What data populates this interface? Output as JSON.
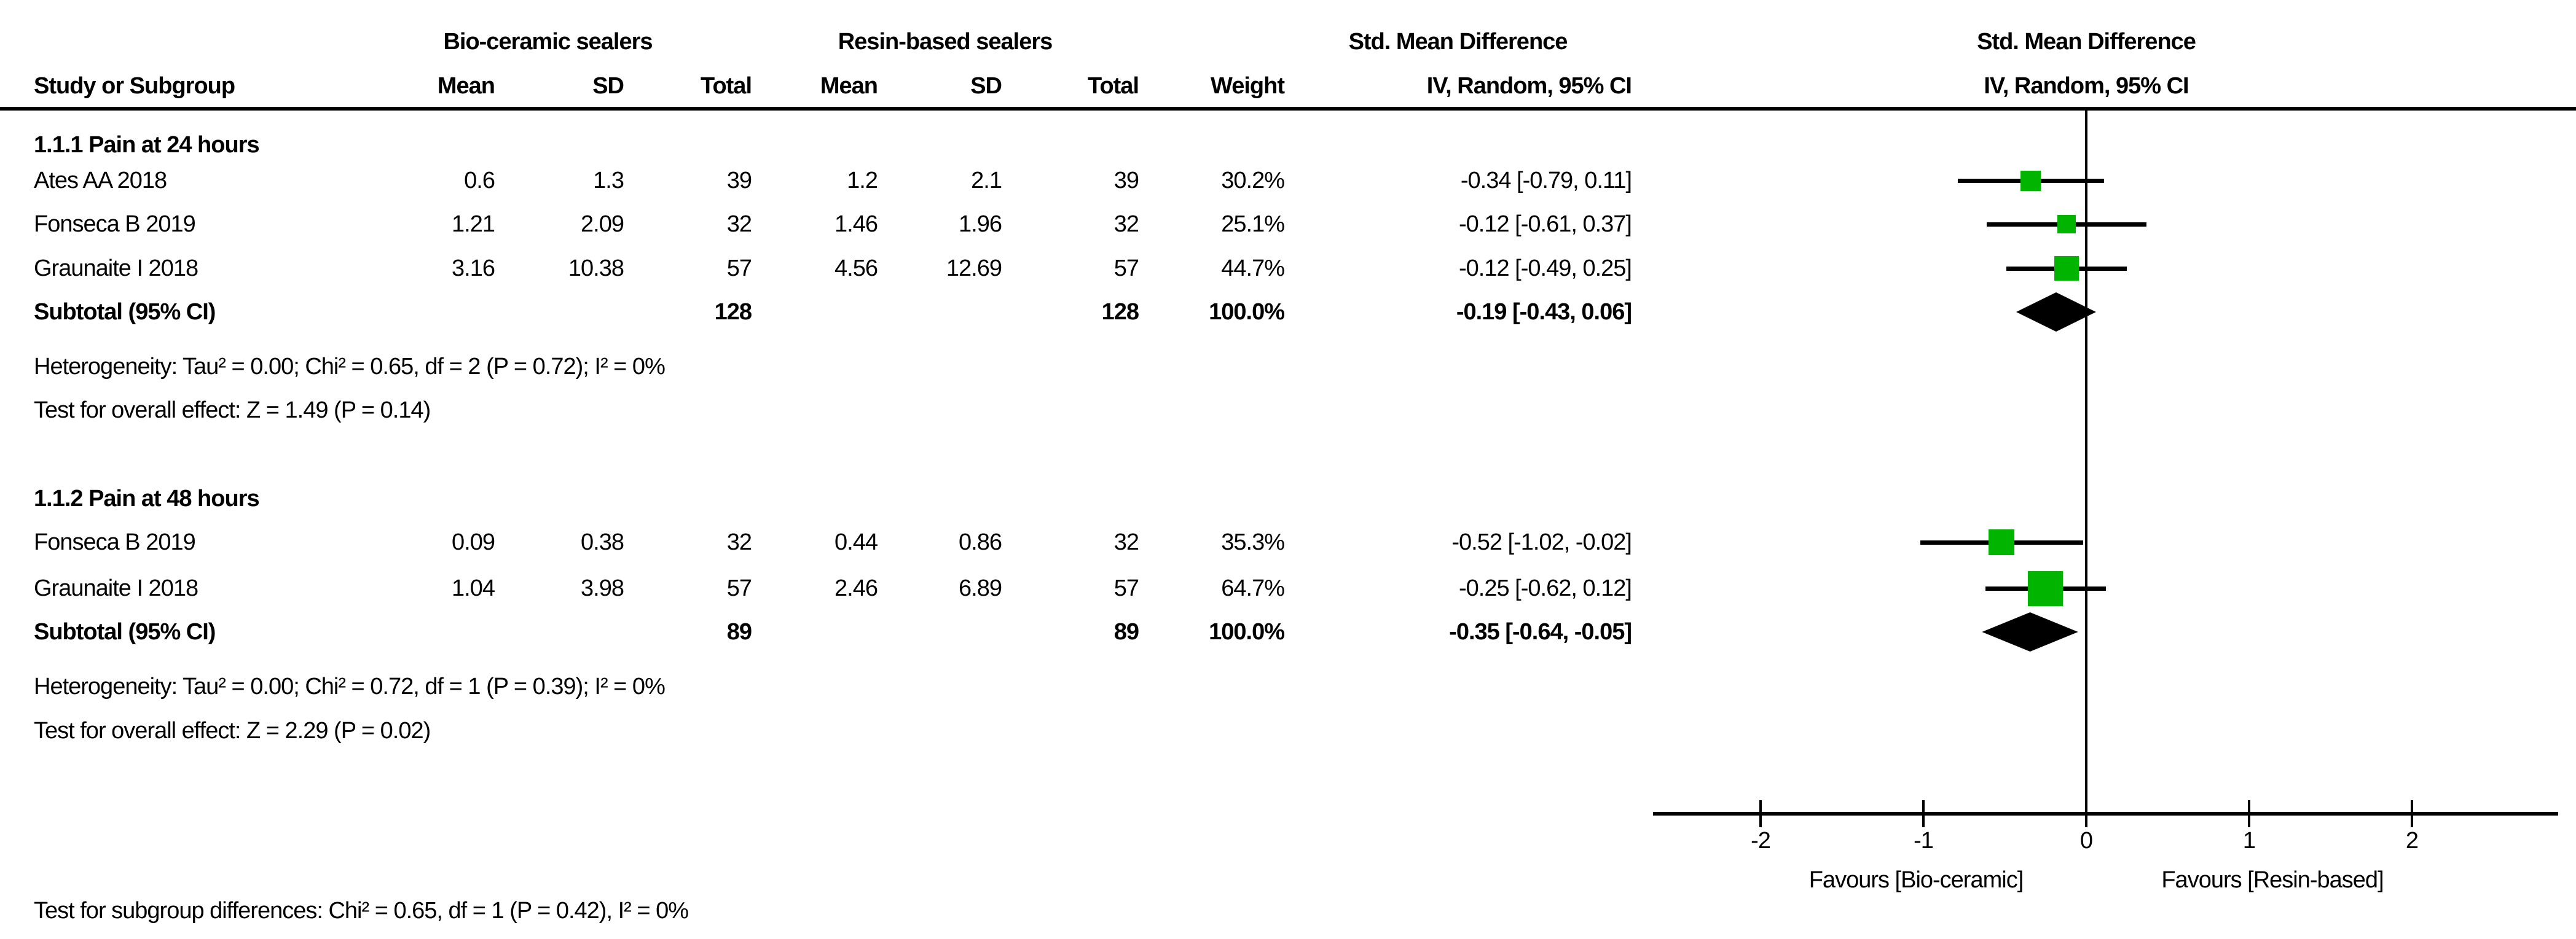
{
  "header": {
    "study_col": "Study or Subgroup",
    "group1": "Bio-ceramic sealers",
    "group2": "Resin-based sealers",
    "mean": "Mean",
    "sd": "SD",
    "total": "Total",
    "weight": "Weight",
    "smd_col_title": "Std. Mean Difference",
    "smd_col_sub": "IV, Random, 95% CI",
    "plot_title": "Std. Mean Difference",
    "plot_sub": "IV, Random, 95% CI"
  },
  "sections": [
    {
      "title": "1.1.1 Pain at 24 hours",
      "studies": [
        {
          "label": "Ates AA 2018",
          "mean1": "0.6",
          "sd1": "1.3",
          "total1": "39",
          "mean2": "1.2",
          "sd2": "2.1",
          "total2": "39",
          "weight": "30.2%",
          "ci": "-0.34 [-0.79, 0.11]"
        },
        {
          "label": "Fonseca B 2019",
          "mean1": "1.21",
          "sd1": "2.09",
          "total1": "32",
          "mean2": "1.46",
          "sd2": "1.96",
          "total2": "32",
          "weight": "25.1%",
          "ci": "-0.12 [-0.61, 0.37]"
        },
        {
          "label": "Graunaite I 2018",
          "mean1": "3.16",
          "sd1": "10.38",
          "total1": "57",
          "mean2": "4.56",
          "sd2": "12.69",
          "total2": "57",
          "weight": "44.7%",
          "ci": "-0.12 [-0.49, 0.25]"
        }
      ],
      "subtotal": {
        "label": "Subtotal (95% CI)",
        "total1": "128",
        "total2": "128",
        "weight": "100.0%",
        "ci": "-0.19 [-0.43, 0.06]"
      },
      "heterogeneity": "Heterogeneity: Tau² = 0.00; Chi² = 0.65, df = 2 (P = 0.72); I² = 0%",
      "overall_effect": "Test for overall effect: Z = 1.49 (P = 0.14)"
    },
    {
      "title": "1.1.2 Pain at 48 hours",
      "studies": [
        {
          "label": "Fonseca B 2019",
          "mean1": "0.09",
          "sd1": "0.38",
          "total1": "32",
          "mean2": "0.44",
          "sd2": "0.86",
          "total2": "32",
          "weight": "35.3%",
          "ci": "-0.52 [-1.02, -0.02]"
        },
        {
          "label": "Graunaite I 2018",
          "mean1": "1.04",
          "sd1": "3.98",
          "total1": "57",
          "mean2": "2.46",
          "sd2": "6.89",
          "total2": "57",
          "weight": "64.7%",
          "ci": "-0.25 [-0.62, 0.12]"
        }
      ],
      "subtotal": {
        "label": "Subtotal (95% CI)",
        "total1": "89",
        "total2": "89",
        "weight": "100.0%",
        "ci": "-0.35 [-0.64, -0.05]"
      },
      "heterogeneity": "Heterogeneity: Tau² = 0.00; Chi² = 0.72, df = 1 (P = 0.39); I² = 0%",
      "overall_effect": "Test for overall effect: Z = 2.29 (P = 0.02)"
    }
  ],
  "subgroup_test": "Test for subgroup differences: Chi² = 0.65, df = 1 (P = 0.42), I² = 0%",
  "chart_data": {
    "type": "forest",
    "title": "Std. Mean Difference",
    "subtitle": "IV, Random, 95% CI",
    "effect_measure": "Std. Mean Difference (IV, Random, 95% CI)",
    "axis": {
      "ticks": [
        -2,
        -1,
        0,
        1,
        2
      ],
      "xlim": [
        -2.66,
        2.9
      ],
      "favours_left": "Favours [Bio-ceramic]",
      "favours_right": "Favours [Resin-based]"
    },
    "marker_color": "#00b400",
    "line_color": "#000000",
    "sections": [
      {
        "name": "1.1.1 Pain at 24 hours",
        "studies": [
          {
            "label": "Ates AA 2018",
            "smd": -0.34,
            "low": -0.79,
            "high": 0.11,
            "weight": 30.2
          },
          {
            "label": "Fonseca B 2019",
            "smd": -0.12,
            "low": -0.61,
            "high": 0.37,
            "weight": 25.1
          },
          {
            "label": "Graunaite I 2018",
            "smd": -0.12,
            "low": -0.49,
            "high": 0.25,
            "weight": 44.7
          }
        ],
        "subtotal": {
          "smd": -0.19,
          "low": -0.43,
          "high": 0.06
        }
      },
      {
        "name": "1.1.2 Pain at 48 hours",
        "studies": [
          {
            "label": "Fonseca B 2019",
            "smd": -0.52,
            "low": -1.02,
            "high": -0.02,
            "weight": 35.3
          },
          {
            "label": "Graunaite I 2018",
            "smd": -0.25,
            "low": -0.62,
            "high": 0.12,
            "weight": 64.7
          }
        ],
        "subtotal": {
          "smd": -0.35,
          "low": -0.64,
          "high": -0.05
        }
      }
    ]
  }
}
